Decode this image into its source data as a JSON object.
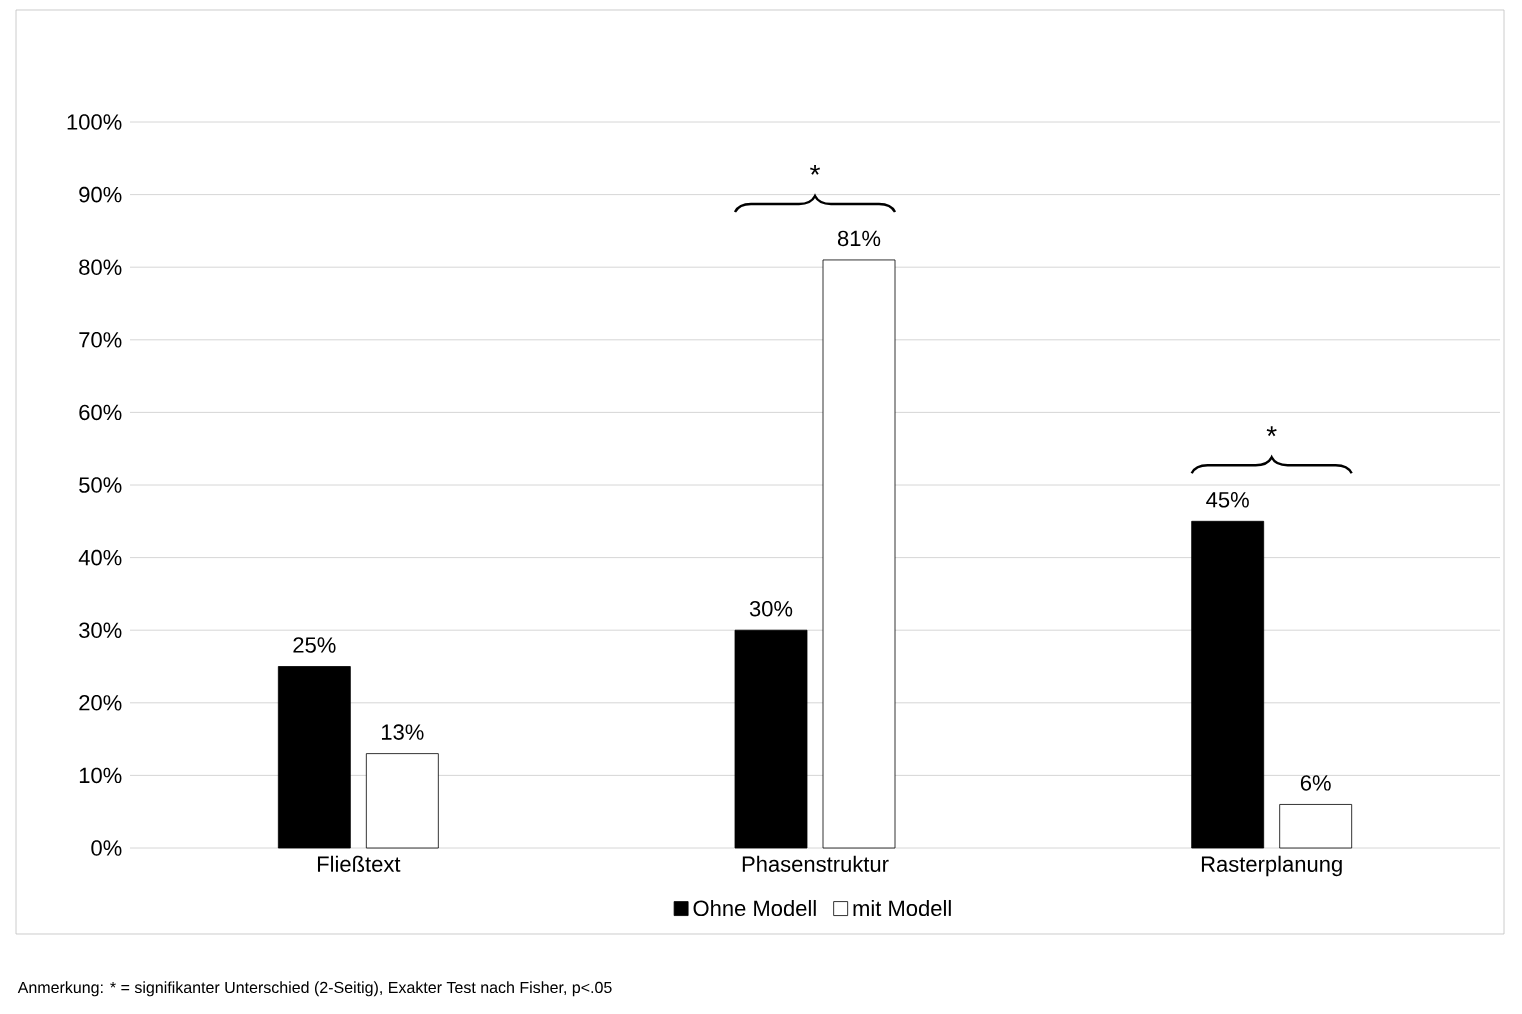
{
  "chart_data": {
    "type": "bar",
    "categories": [
      "Fließtext",
      "Phasenstruktur",
      "Rasterplanung"
    ],
    "series": [
      {
        "name": "Ohne Modell",
        "color": "#000000",
        "values": [
          25,
          30,
          45
        ],
        "value_labels": [
          "25%",
          "30%",
          "45%"
        ]
      },
      {
        "name": "mit Modell",
        "color": "#ffffff",
        "values": [
          13,
          81,
          6
        ],
        "value_labels": [
          "13%",
          "81%",
          "6%"
        ]
      }
    ],
    "ylim": [
      0,
      100
    ],
    "yticks": [
      {
        "value": 0,
        "label": "0%"
      },
      {
        "value": 10,
        "label": "10%"
      },
      {
        "value": 20,
        "label": "20%"
      },
      {
        "value": 30,
        "label": "30%"
      },
      {
        "value": 40,
        "label": "40%"
      },
      {
        "value": 50,
        "label": "50%"
      },
      {
        "value": 60,
        "label": "60%"
      },
      {
        "value": 70,
        "label": "70%"
      },
      {
        "value": 80,
        "label": "80%"
      },
      {
        "value": 90,
        "label": "90%"
      },
      {
        "value": 100,
        "label": "100%"
      }
    ],
    "grid": "y",
    "legend": "bottom",
    "annotations": [
      "*",
      "*",
      "Anmerkung: * = signifikanter Unterschied (2-Seitig), Exakter Test nach Fisher, p<.05"
    ]
  }
}
